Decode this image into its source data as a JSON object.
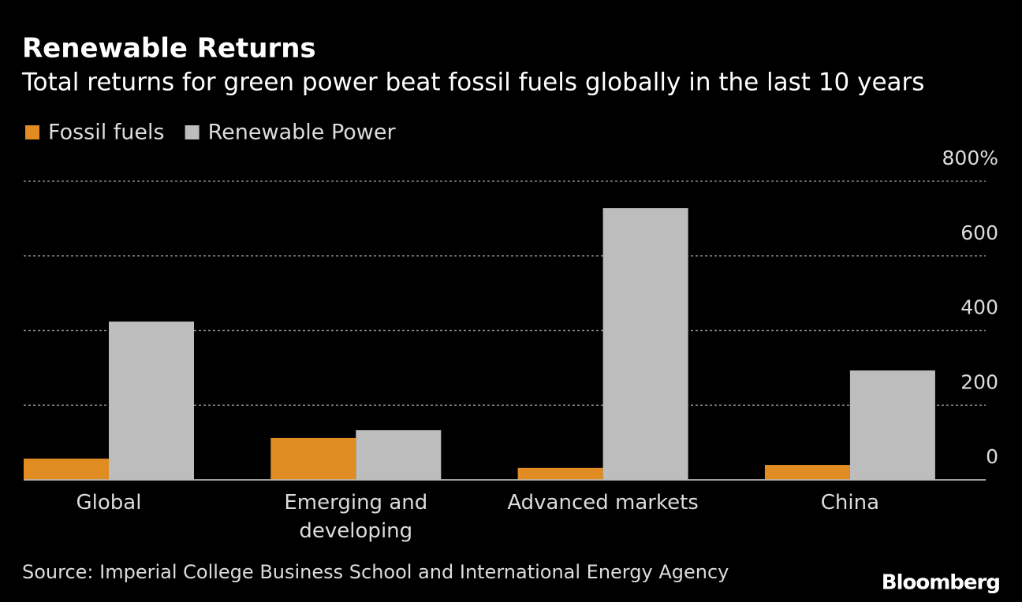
{
  "chart_data": {
    "type": "bar",
    "title": "Renewable Returns",
    "subtitle": "Total returns for green power beat fossil fuels globally in the last 10 years",
    "categories": [
      "Global",
      "Emerging and\ndeveloping",
      "Advanced markets",
      "China"
    ],
    "series": [
      {
        "name": "Fossil fuels",
        "color": "#e08c22",
        "values": [
          57,
          112,
          32,
          40
        ]
      },
      {
        "name": "Renewable Power",
        "color": "#bdbdbd",
        "values": [
          424,
          133,
          728,
          293
        ]
      }
    ],
    "ylim": [
      0,
      800
    ],
    "yticks": [
      0,
      200,
      400,
      600,
      {
        "value": 800,
        "label": "800%"
      }
    ],
    "grid": true,
    "legend": "top-left",
    "source": "Source: Imperial College Business School and International Energy Agency",
    "brand": "Bloomberg"
  }
}
